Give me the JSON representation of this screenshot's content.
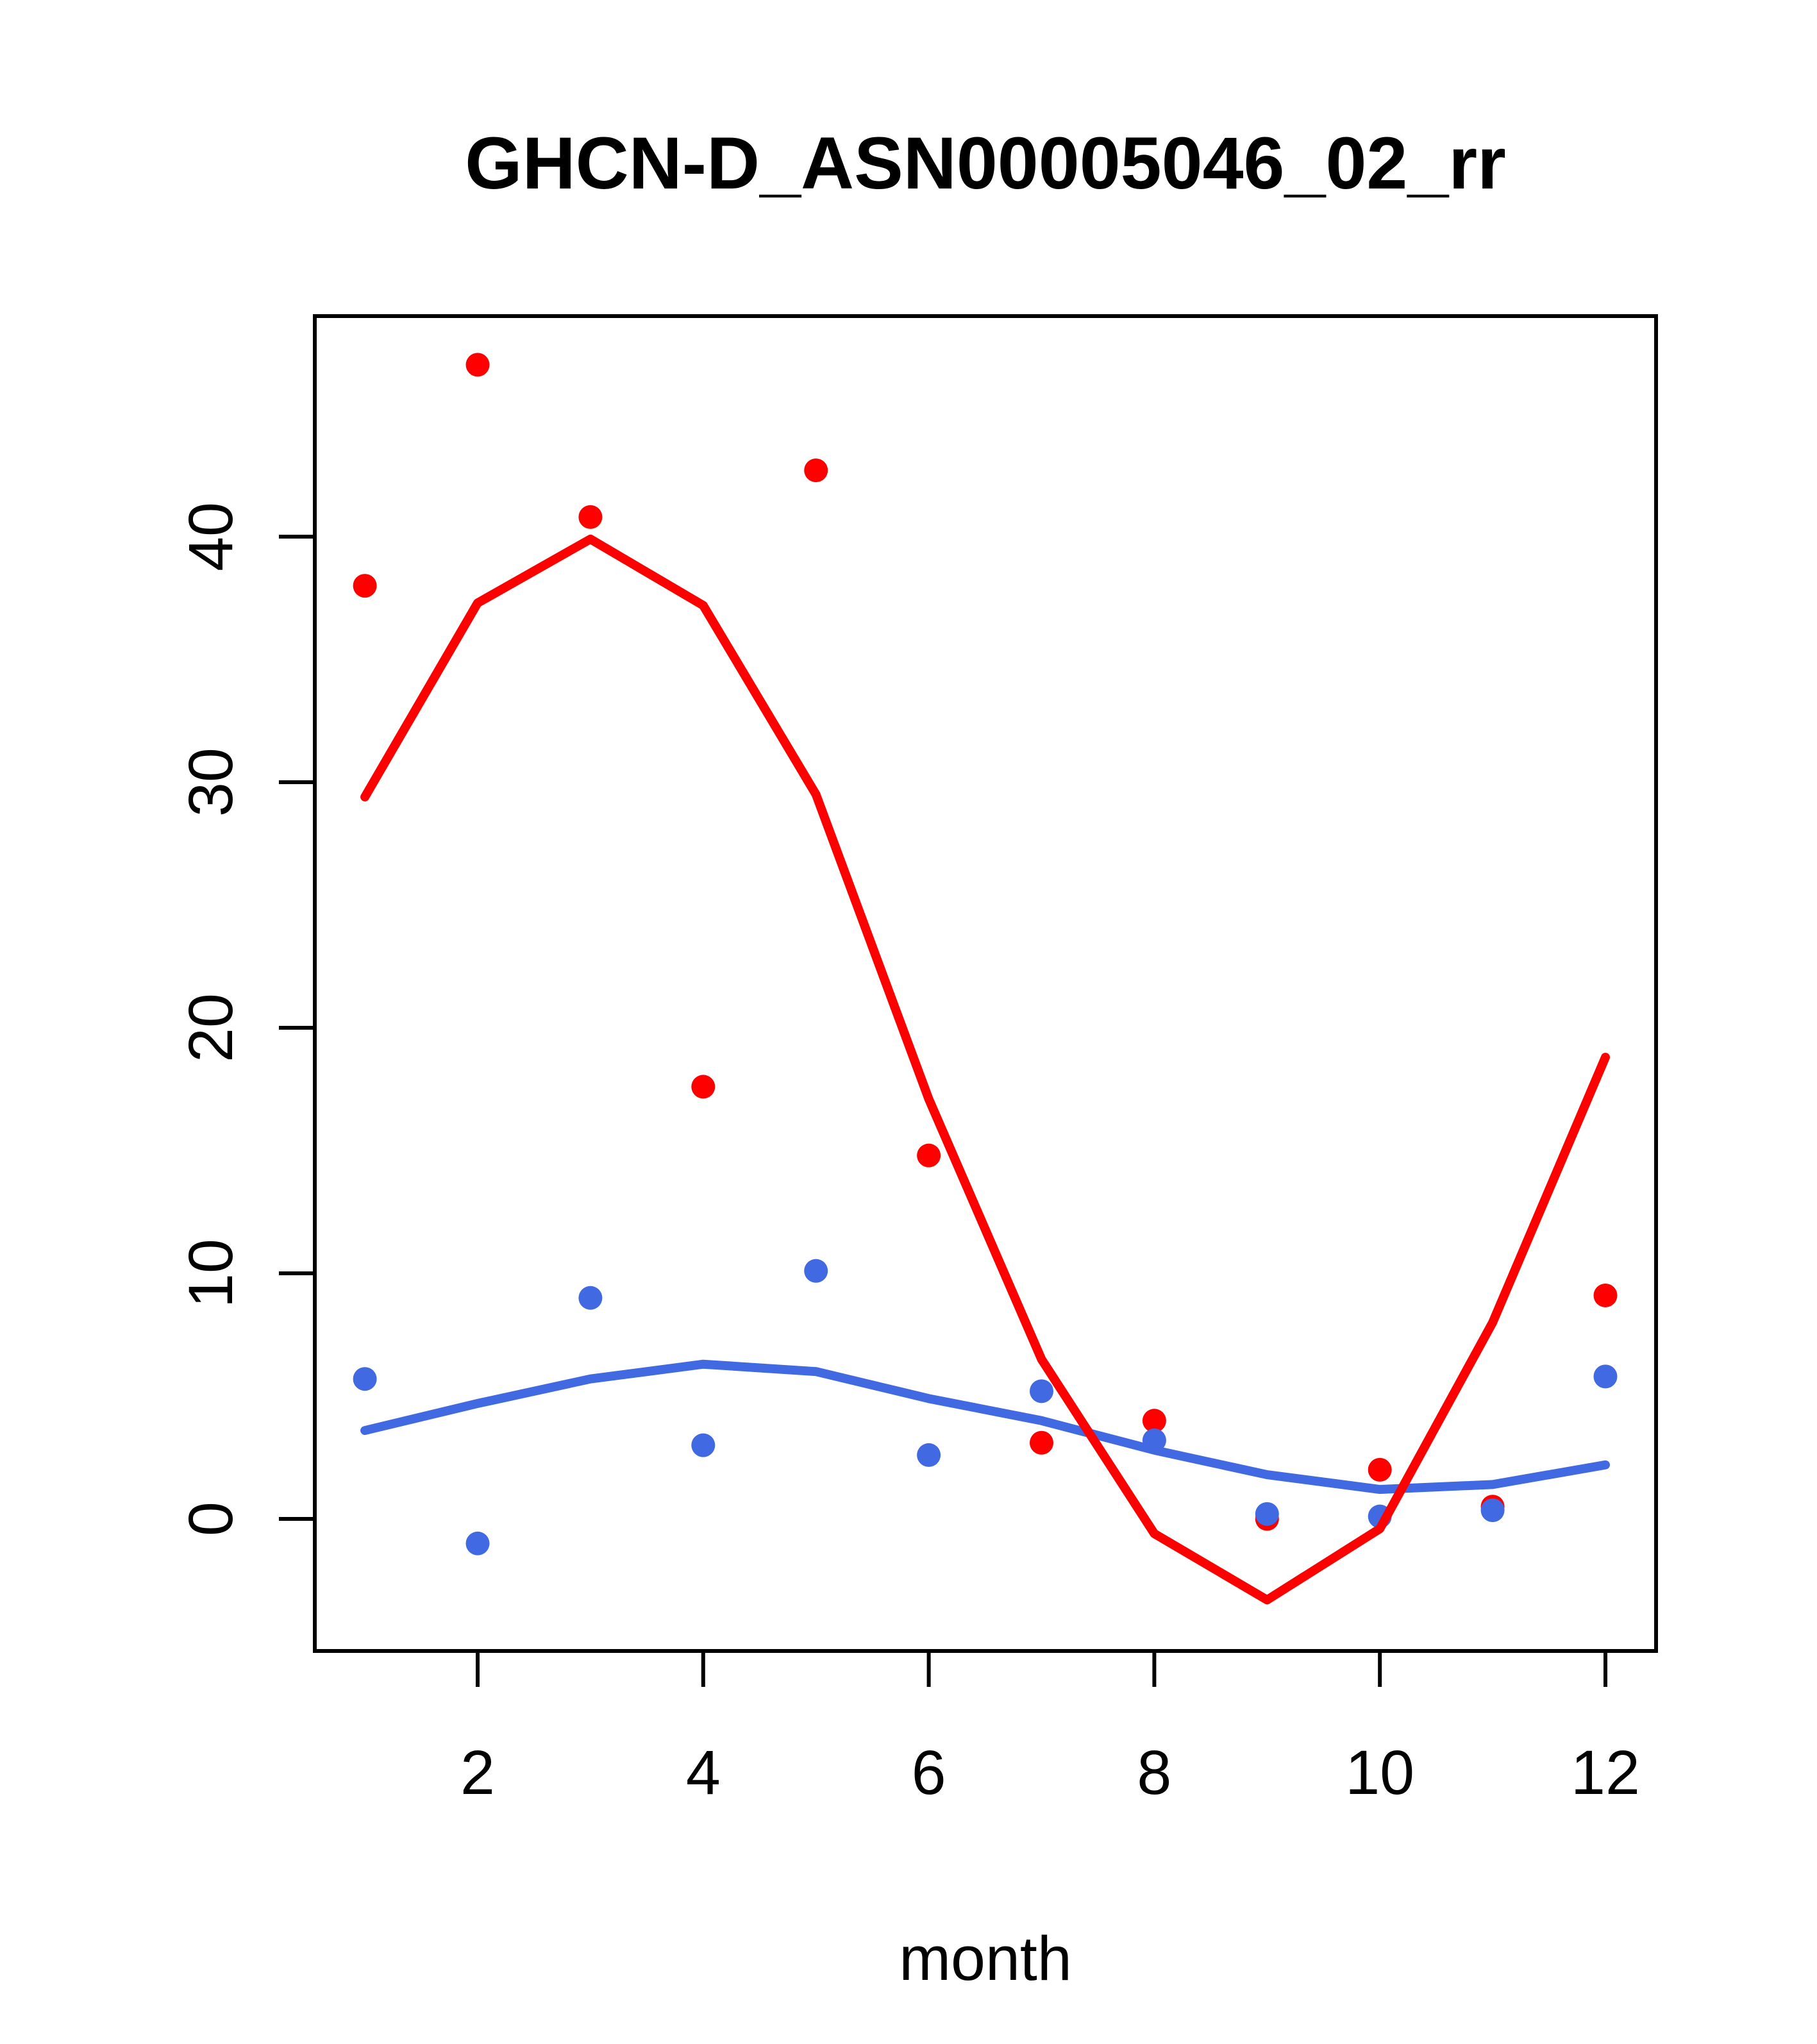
{
  "chart_data": {
    "type": "scatter",
    "title": "GHCN-D_ASN00005046_02_rr",
    "xlabel": "month",
    "ylabel": "",
    "x_ticks": [
      2,
      4,
      6,
      8,
      10,
      12
    ],
    "y_ticks": [
      0,
      10,
      20,
      30,
      40
    ],
    "xlim": [
      0.56,
      12.44
    ],
    "ylim": [
      -5.4,
      49.0
    ],
    "grid": "off",
    "legend": "none",
    "months": [
      1,
      2,
      3,
      4,
      5,
      6,
      7,
      8,
      9,
      10,
      11,
      12
    ],
    "colors": {
      "red": "#FF0000",
      "blue": "#4169E1",
      "axis": "#000000"
    },
    "series": [
      {
        "name": "red-points",
        "kind": "scatter",
        "color": "#FF0000",
        "values": [
          38.0,
          47.0,
          40.8,
          17.6,
          42.7,
          14.8,
          3.1,
          4.0,
          0.0,
          2.0,
          0.5,
          9.1
        ]
      },
      {
        "name": "blue-points",
        "kind": "scatter",
        "color": "#4169E1",
        "values": [
          5.7,
          -1.0,
          9.0,
          3.0,
          10.1,
          2.6,
          5.2,
          3.2,
          0.2,
          0.1,
          0.35,
          5.8
        ]
      },
      {
        "name": "blue-fit-line",
        "kind": "line",
        "color": "#4169E1",
        "values": [
          3.6,
          4.7,
          5.7,
          6.3,
          6.0,
          4.9,
          4.0,
          2.8,
          1.8,
          1.2,
          1.4,
          2.2
        ]
      },
      {
        "name": "red-fit-line",
        "kind": "line",
        "color": "#FF0000",
        "values": [
          29.4,
          37.3,
          39.9,
          37.2,
          29.5,
          17.1,
          6.5,
          -0.6,
          -3.3,
          -0.4,
          8.0,
          18.8
        ]
      }
    ]
  }
}
